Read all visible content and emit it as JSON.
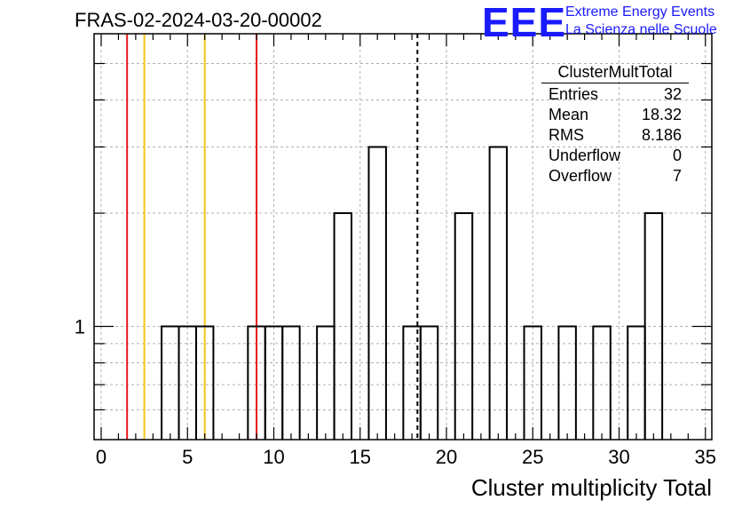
{
  "title": "FRAS-02-2024-03-20-00002",
  "logo": {
    "mark": "EEE",
    "line1": "Extreme Energy Events",
    "line2": "La Scienza nelle Scuole",
    "color": "#1a1aff"
  },
  "stats": {
    "name": "ClusterMultTotal",
    "rows": [
      {
        "label": "Entries",
        "value": "32"
      },
      {
        "label": "Mean",
        "value": "18.32"
      },
      {
        "label": "RMS",
        "value": "8.186"
      },
      {
        "label": "Underflow",
        "value": "0"
      },
      {
        "label": "Overflow",
        "value": "7"
      }
    ]
  },
  "chart_data": {
    "type": "histogram",
    "xlabel": "Cluster multiplicity Total",
    "ylabel": "",
    "xlim": [
      -0.5,
      35.5
    ],
    "ylim": [
      0.5,
      6
    ],
    "yscale": "log",
    "xticks": [
      0,
      5,
      10,
      15,
      20,
      25,
      30,
      35
    ],
    "yticks": [
      1
    ],
    "grid": true,
    "bin_width": 1,
    "bins": [
      {
        "x": 4,
        "y": 1
      },
      {
        "x": 5,
        "y": 1
      },
      {
        "x": 6,
        "y": 1
      },
      {
        "x": 9,
        "y": 1
      },
      {
        "x": 10,
        "y": 1
      },
      {
        "x": 11,
        "y": 1
      },
      {
        "x": 13,
        "y": 1
      },
      {
        "x": 14,
        "y": 2
      },
      {
        "x": 16,
        "y": 3
      },
      {
        "x": 18,
        "y": 1
      },
      {
        "x": 19,
        "y": 1
      },
      {
        "x": 21,
        "y": 2
      },
      {
        "x": 23,
        "y": 3
      },
      {
        "x": 25,
        "y": 1
      },
      {
        "x": 27,
        "y": 1
      },
      {
        "x": 29,
        "y": 1
      },
      {
        "x": 31,
        "y": 1
      },
      {
        "x": 32,
        "y": 2
      }
    ],
    "vlines": [
      {
        "x": 1.5,
        "color": "#e8191a",
        "style": "solid"
      },
      {
        "x": 2.5,
        "color": "#f5c518",
        "style": "solid"
      },
      {
        "x": 6.0,
        "color": "#f5c518",
        "style": "solid"
      },
      {
        "x": 9.0,
        "color": "#e8191a",
        "style": "solid"
      },
      {
        "x": 18.32,
        "color": "#000000",
        "style": "dashed"
      }
    ]
  }
}
